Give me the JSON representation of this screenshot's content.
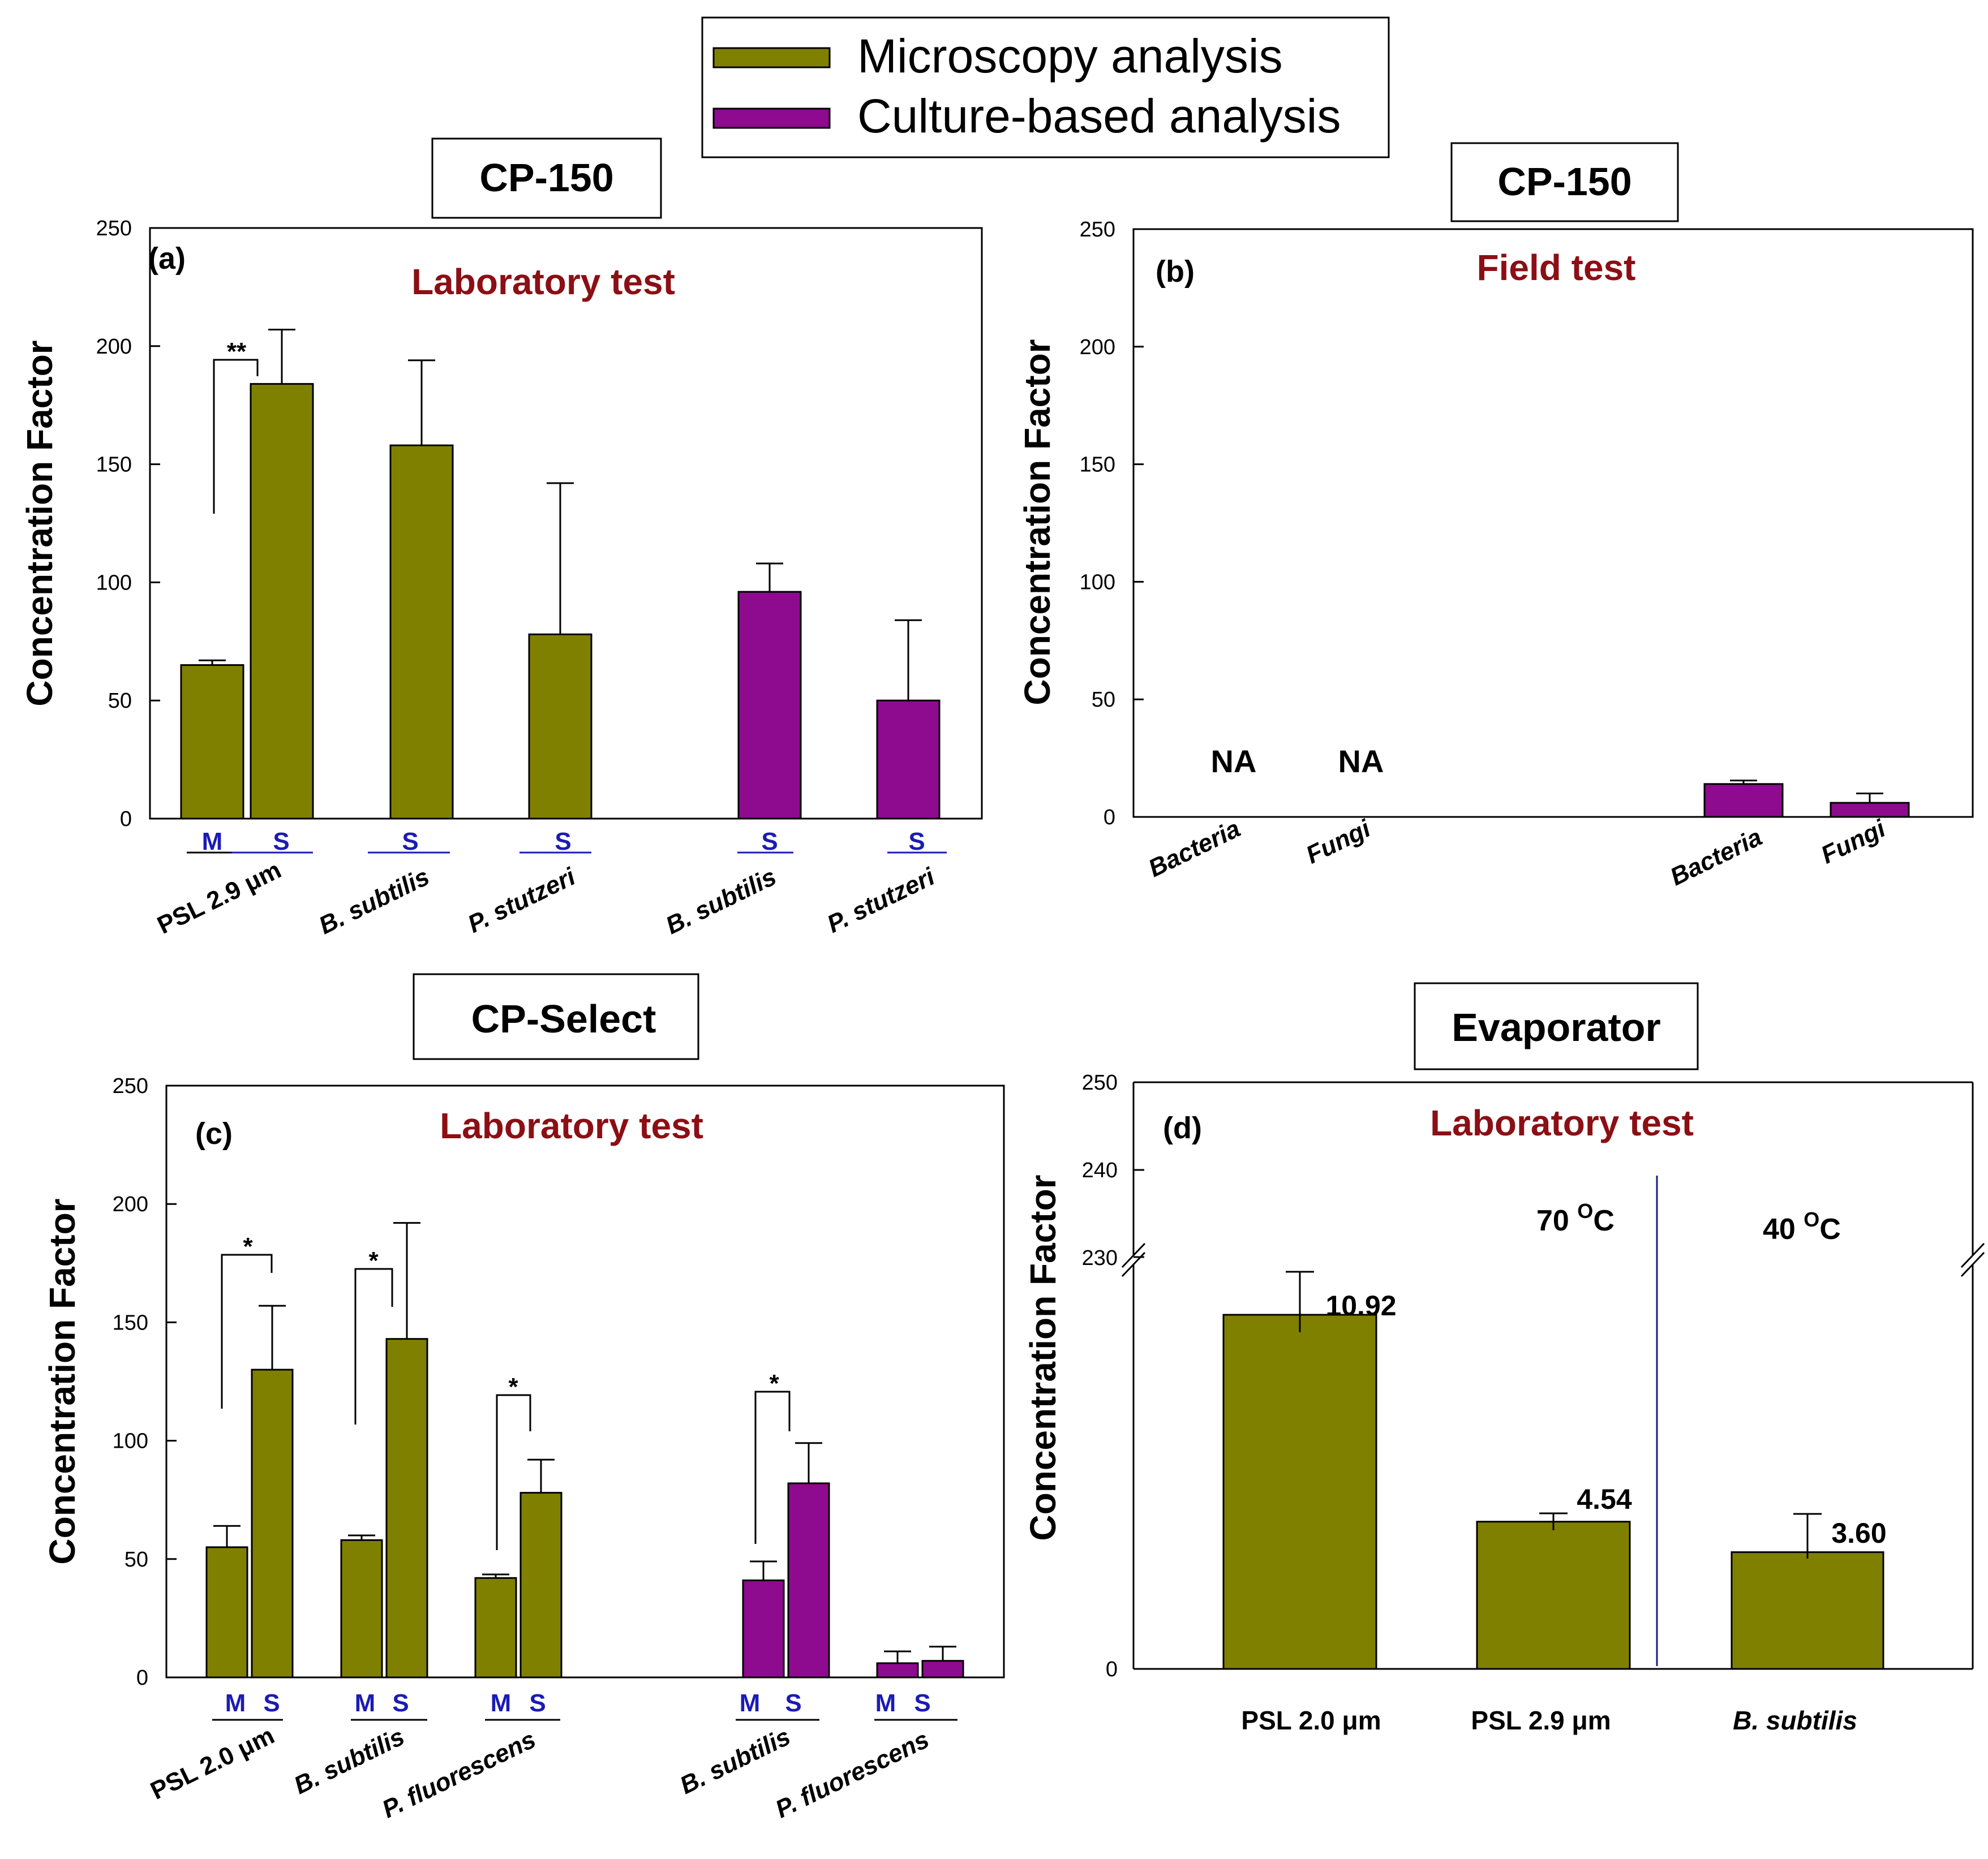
{
  "legend": {
    "items": [
      {
        "label": "Microscopy analysis",
        "color": "#808000"
      },
      {
        "label": "Culture-based analysis",
        "color": "#8e0a8e"
      }
    ]
  },
  "chart_data": [
    {
      "id": "a",
      "type": "bar",
      "box_title": "CP-150",
      "panel_label": "(a)",
      "test_label": "Laboratory test",
      "ylabel": "Concentration Factor",
      "ylim": [
        0,
        250
      ],
      "yticks": [
        0,
        50,
        100,
        150,
        200,
        250
      ],
      "groups": [
        {
          "label": "PSL 2.9 μm",
          "bars": [
            {
              "sub": "M",
              "series": "Microscopy analysis",
              "value": 65,
              "err": 2
            },
            {
              "sub": "S",
              "series": "Microscopy analysis",
              "value": 184,
              "err": 23
            }
          ],
          "sig": "**"
        },
        {
          "label": "B. subtilis",
          "bars": [
            {
              "sub": "S",
              "series": "Microscopy analysis",
              "value": 158,
              "err": 36
            }
          ]
        },
        {
          "label": "P. stutzeri",
          "bars": [
            {
              "sub": "S",
              "series": "Microscopy analysis",
              "value": 78,
              "err": 64
            }
          ]
        },
        {
          "label": "B. subtilis",
          "bars": [
            {
              "sub": "S",
              "series": "Culture-based analysis",
              "value": 96,
              "err": 12
            }
          ]
        },
        {
          "label": "P. stutzeri",
          "bars": [
            {
              "sub": "S",
              "series": "Culture-based analysis",
              "value": 50,
              "err": 34
            }
          ]
        }
      ]
    },
    {
      "id": "b",
      "type": "bar",
      "box_title": "CP-150",
      "panel_label": "(b)",
      "test_label": "Field test",
      "ylabel": "Concentration Factor",
      "ylim": [
        0,
        250
      ],
      "yticks": [
        0,
        50,
        100,
        150,
        200,
        250
      ],
      "groups": [
        {
          "label": "Bacteria",
          "series": "Microscopy analysis",
          "value": null,
          "note": "NA"
        },
        {
          "label": "Fungi",
          "series": "Microscopy analysis",
          "value": null,
          "note": "NA"
        },
        {
          "label": "Bacteria",
          "series": "Culture-based analysis",
          "value": 14,
          "err": 1.5
        },
        {
          "label": "Fungi",
          "series": "Culture-based analysis",
          "value": 6,
          "err": 4
        }
      ]
    },
    {
      "id": "c",
      "type": "bar",
      "box_title": "CP-Select",
      "panel_label": "(c)",
      "test_label": "Laboratory test",
      "ylabel": "Concentration Factor",
      "ylim": [
        0,
        250
      ],
      "yticks": [
        0,
        50,
        100,
        150,
        200,
        250
      ],
      "groups": [
        {
          "label": "PSL 2.0 μm",
          "series": "Microscopy analysis",
          "bars": [
            {
              "sub": "M",
              "value": 55,
              "err": 9
            },
            {
              "sub": "S",
              "value": 130,
              "err": 27
            }
          ],
          "sig": "*"
        },
        {
          "label": "B. subtilis",
          "series": "Microscopy analysis",
          "bars": [
            {
              "sub": "M",
              "value": 58,
              "err": 2
            },
            {
              "sub": "S",
              "value": 143,
              "err": 49
            }
          ],
          "sig": "*"
        },
        {
          "label": "P. fluorescens",
          "series": "Microscopy analysis",
          "bars": [
            {
              "sub": "M",
              "value": 42,
              "err": 1.5
            },
            {
              "sub": "S",
              "value": 78,
              "err": 14
            }
          ],
          "sig": "*"
        },
        {
          "label": "B. subtilis",
          "series": "Culture-based analysis",
          "bars": [
            {
              "sub": "M",
              "value": 41,
              "err": 8
            },
            {
              "sub": "S",
              "value": 82,
              "err": 17
            }
          ],
          "sig": "*"
        },
        {
          "label": "P. fluorescens",
          "series": "Culture-based analysis",
          "bars": [
            {
              "sub": "M",
              "value": 6,
              "err": 5
            },
            {
              "sub": "S",
              "value": 7,
              "err": 6
            }
          ]
        }
      ]
    },
    {
      "id": "d",
      "type": "bar",
      "box_title": "Evaporator",
      "panel_label": "(d)",
      "test_label": "Laboratory test",
      "ylabel": "Concentration Factor",
      "axis_break": true,
      "yticks": [
        0,
        230,
        240,
        250
      ],
      "temperatures": [
        {
          "label": "70 °C",
          "value": "70 ",
          "sup": "O",
          "unit": "C"
        },
        {
          "label": "40 °C",
          "value": "40 ",
          "sup": "O",
          "unit": "C"
        }
      ],
      "groups": [
        {
          "label": "PSL 2.0 μm",
          "italic": false,
          "value": 10.92,
          "value_label": "10.92",
          "temperature": "70 °C"
        },
        {
          "label": "PSL 2.9 μm",
          "italic": false,
          "value": 4.54,
          "value_label": "4.54",
          "temperature": "70 °C"
        },
        {
          "label": "B. subtilis",
          "italic": true,
          "value": 3.6,
          "value_label": "3.60",
          "temperature": "40 °C"
        }
      ]
    }
  ]
}
